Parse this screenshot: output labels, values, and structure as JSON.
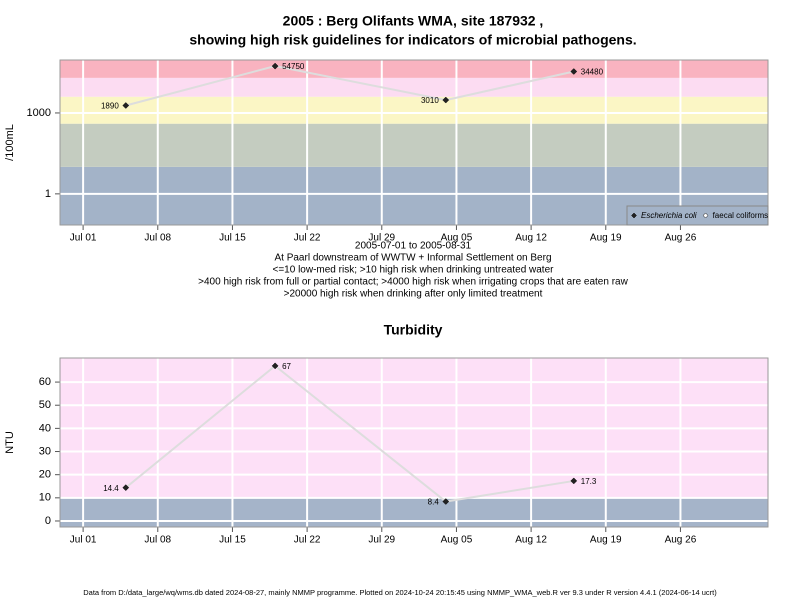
{
  "chart_data": [
    {
      "type": "line",
      "title": "2005 : Berg Olifants WMA, site 187932 ,",
      "subtitle": "showing high risk guidelines for indicators of microbial pathogens.",
      "ylabel": "/100mL",
      "log": true,
      "x": [
        "2005-07-05",
        "2005-07-19",
        "2005-08-04",
        "2005-08-16"
      ],
      "series": [
        {
          "name": "Escherichia coli",
          "color": "#222222",
          "values": [
            1890,
            54750,
            3010,
            34480
          ]
        },
        {
          "name": "faecal coliforms",
          "color": "#ffffff",
          "values": [
            null,
            null,
            null,
            null
          ]
        }
      ],
      "line_color": "#dddddd",
      "xlim": [
        "2005-06-28T20:00",
        "2005-09-03T05:00"
      ],
      "xticks": [
        {
          "value": "2005-07-01",
          "label": "Jul 01"
        },
        {
          "value": "2005-07-08",
          "label": "Jul 08"
        },
        {
          "value": "2005-07-15",
          "label": "Jul 15"
        },
        {
          "value": "2005-07-22",
          "label": "Jul 22"
        },
        {
          "value": "2005-07-29",
          "label": "Jul 29"
        },
        {
          "value": "2005-08-05",
          "label": "Aug 05"
        },
        {
          "value": "2005-08-12",
          "label": "Aug 12"
        },
        {
          "value": "2005-08-19",
          "label": "Aug 19"
        },
        {
          "value": "2005-08-26",
          "label": "Aug 26"
        }
      ],
      "ylim": [
        0.07,
        92000
      ],
      "yticks": [
        1,
        1000
      ],
      "thresholds": [
        10,
        400,
        4000,
        20000
      ],
      "band_colors": [
        "#a3b3c8",
        "#c4ccc0",
        "#fbf6c5",
        "#fcdcf2",
        "#f9b3c0"
      ],
      "grid": true,
      "legend": "bottom-right",
      "notes": [
        "2005-07-01 to 2005-08-31",
        "At Paarl downstream of WWTW + Informal Settlement on Berg",
        "<=10 low-med risk; >10 high risk when drinking untreated water",
        ">400 high risk from full or partial contact; >4000 high risk when irrigating crops that are eaten raw",
        ">20000 high risk when drinking after only limited treatment"
      ]
    },
    {
      "type": "line",
      "title": "Turbidity",
      "ylabel": "NTU",
      "log": false,
      "x": [
        "2005-07-05",
        "2005-07-19",
        "2005-08-04",
        "2005-08-16"
      ],
      "series": [
        {
          "name": "Turbidity",
          "color": "#222222",
          "values": [
            14.4,
            67,
            8.4,
            17.3
          ]
        }
      ],
      "line_color": "#dddddd",
      "xlim": [
        "2005-06-28T20:00",
        "2005-09-03T05:00"
      ],
      "xticks": [
        {
          "value": "2005-07-01",
          "label": "Jul 01"
        },
        {
          "value": "2005-07-08",
          "label": "Jul 08"
        },
        {
          "value": "2005-07-15",
          "label": "Jul 15"
        },
        {
          "value": "2005-07-22",
          "label": "Jul 22"
        },
        {
          "value": "2005-07-29",
          "label": "Jul 29"
        },
        {
          "value": "2005-08-05",
          "label": "Aug 05"
        },
        {
          "value": "2005-08-12",
          "label": "Aug 12"
        },
        {
          "value": "2005-08-19",
          "label": "Aug 19"
        },
        {
          "value": "2005-08-26",
          "label": "Aug 26"
        }
      ],
      "ylim": [
        -2.6,
        70.4
      ],
      "yticks": [
        0,
        10,
        20,
        30,
        40,
        50,
        60
      ],
      "thresholds": [
        10
      ],
      "band_colors": [
        "#a5b4c9",
        "#fde0f7"
      ],
      "grid": true
    }
  ],
  "footer": "Data from D:/data_large/wq/wms.db dated 2024-08-27, mainly NMMP programme. Plotted on 2024-10-24 20:15:45 using NMMP_WMA_web.R ver 9.3 under R version 4.4.1 (2024-06-14 ucrt)"
}
